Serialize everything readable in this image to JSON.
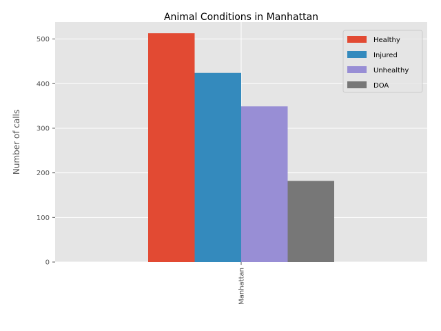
{
  "chart_data": {
    "type": "bar",
    "title": "Animal Conditions in Manhattan",
    "xlabel": "",
    "ylabel": "Number of calls",
    "categories": [
      "Manhattan"
    ],
    "series": [
      {
        "name": "Healthy",
        "values": [
          513
        ],
        "color": "#E24A33"
      },
      {
        "name": "Injured",
        "values": [
          424
        ],
        "color": "#348ABD"
      },
      {
        "name": "Unhealthy",
        "values": [
          349
        ],
        "color": "#988ED5"
      },
      {
        "name": "DOA",
        "values": [
          182
        ],
        "color": "#777777"
      }
    ],
    "ylim": [
      0,
      538
    ],
    "yticks": [
      "0",
      "100",
      "200",
      "300",
      "400",
      "500"
    ],
    "grid": true,
    "legend_position": "top-right",
    "background_color": "#E5E5E5"
  }
}
